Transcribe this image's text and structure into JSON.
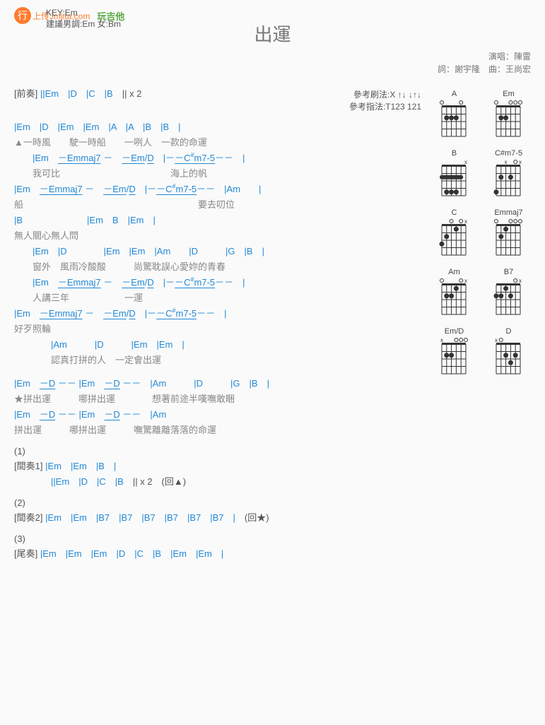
{
  "logo": {
    "glyph": "行",
    "url": "上传Jmjita.com",
    "play": "玩吉他"
  },
  "key": {
    "main": "KEY:Em",
    "suggest": "建議男調:Em 女:Bm"
  },
  "title": "出運",
  "credits": {
    "singer": "演唱：陳雷",
    "writers": "詞：謝宇隆　曲：王尚宏"
  },
  "ref": {
    "strum": "參考刷法:X ↑↓ ↓↑↓",
    "finger": "參考指法:T123 121"
  },
  "intro": {
    "label": "[前奏]",
    "chords": "||Em　|D　|C　|B　|| x 2"
  },
  "v1": {
    "l1c": "|Em　|D　|Em　|Em　|A　|A　|B　|B　|",
    "l1t": "▲一時風　　駛一時船　　一咧人　一款的命運",
    "l2c": "　　|Em　－Emmaj7 －　－Em/D　|－－C♯m7-5－－　|",
    "l2t": "　　我可比　　　　　　　　　　　　海上的帆",
    "l3c": "|Em　－Emmaj7 －　－Em/D　|－－C♯m7-5－－　|Am　　|",
    "l3t": "船　　　　　　　　　　　　　　　　　　　要去叨位",
    "l4c": "|B　　　　　　　|Em　B　|Em　|",
    "l4t": " 無人關心無人問",
    "l5c": "　　|Em　|D　　　　|Em　|Em　|Am　　|D　　　|G　|B　|",
    "l5t": "　　窗外　風雨冷酸酸　　　尚驚耽誤心愛妳的青春",
    "l6c": "　　|Em　－Emmaj7 －　－Em/D　|－－C♯m7-5－－　|",
    "l6t": "　　人講三年　　　　　　一運",
    "l7c": "|Em　－Emmaj7 －　－Em/D　|－－C♯m7-5－－　|",
    "l7t": "好歹照輪",
    "l8c": "　　　　|Am　　　|D　　　|Em　|Em　|",
    "l8t": "　　　　認真打拼的人　一定會出運"
  },
  "v2": {
    "l1c": "|Em　－D －－ |Em　－D －－　|Am　　　|D　　　|G　|B　|",
    "l1t": "★拼出運　　　哪拼出運　　　　想著前途半嘆嘸敢睏",
    "l2c": "|Em　－D －－ |Em　－D －－　|Am",
    "l2t": " 拼出運　　　哪拼出運　　　嘸驚離離落落的命運"
  },
  "s1": {
    "num": "(1)",
    "label": "[間奏1]",
    "c1": "|Em　|Em　|B　|",
    "c2": "　　||Em　|D　|C　|B　|| x 2　(回▲)"
  },
  "s2": {
    "num": "(2)",
    "label": "[間奏2]",
    "c": "|Em　|Em　|B7　|B7　|B7　|B7　|B7　|B7　|　(回★)"
  },
  "s3": {
    "num": "(3)",
    "label": "[尾奏]",
    "c": "|Em　|Em　|Em　|D　|C　|B　|Em　|Em　|"
  },
  "chords": [
    "A",
    "Em",
    "B",
    "C#m7-5",
    "C",
    "Emmaj7",
    "Am",
    "B7",
    "Em/D",
    "D"
  ]
}
